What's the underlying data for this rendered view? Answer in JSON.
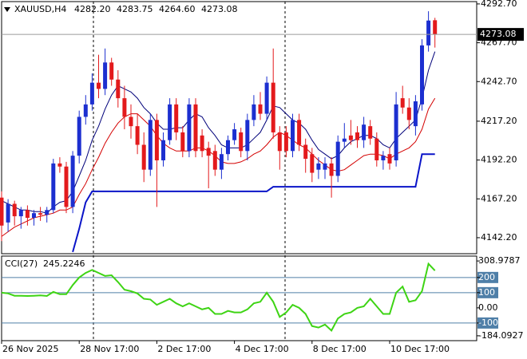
{
  "chart_data": [
    {
      "type": "candlestick",
      "header": {
        "symbol": "XAUUSD,H4",
        "ohlc": [
          {
            "value": 4282.2,
            "label": "4282.20"
          },
          {
            "value": 4283.75,
            "label": "4283.75"
          },
          {
            "value": 4264.6,
            "label": "4264.60"
          },
          {
            "value": 4273.08,
            "label": "4273.08"
          }
        ]
      },
      "categories": [
        "26 Nov 2025",
        null,
        null,
        null,
        null,
        null,
        null,
        null,
        null,
        null,
        null,
        null,
        "28 Nov 17:00",
        null,
        null,
        null,
        null,
        null,
        null,
        null,
        null,
        null,
        null,
        null,
        "2 Dec 17:00",
        null,
        null,
        null,
        null,
        null,
        null,
        null,
        null,
        null,
        null,
        null,
        "4 Dec 17:00",
        null,
        null,
        null,
        null,
        null,
        null,
        null,
        null,
        null,
        null,
        null,
        "8 Dec 17:00",
        null,
        null,
        null,
        null,
        null,
        null,
        null,
        null,
        null,
        null,
        null,
        "10 Dec 17:00",
        null,
        null,
        null,
        null,
        null,
        null,
        null
      ],
      "open": [
        4168,
        4152,
        4164,
        4156,
        4160,
        4155,
        4158,
        4157,
        4160,
        4190,
        4188,
        4162,
        4195,
        4220,
        4228,
        4242,
        4238,
        4255,
        4244,
        4232,
        4220,
        4214,
        4202,
        4186,
        4218,
        4192,
        4205,
        4228,
        4210,
        4198,
        4228,
        4208,
        4200,
        4198,
        4186,
        4196,
        4205,
        4210,
        4198,
        4218,
        4228,
        4222,
        4242,
        4210,
        4210,
        4198,
        4218,
        4202,
        4196,
        4186,
        4186,
        4190,
        4182,
        4204,
        4208,
        4210,
        4205,
        4214,
        4206,
        4192,
        4196,
        4192,
        4232,
        4226,
        4214,
        4228,
        4266,
        4282.2
      ],
      "high": [
        4172,
        4167,
        4166,
        4162,
        4163,
        4160,
        4162,
        4162,
        4193,
        4194,
        4191,
        4198,
        4224,
        4234,
        4248,
        4260,
        4264,
        4258,
        4250,
        4240,
        4228,
        4222,
        4210,
        4222,
        4222,
        4210,
        4232,
        4232,
        4214,
        4232,
        4232,
        4212,
        4204,
        4202,
        4200,
        4208,
        4216,
        4213,
        4222,
        4234,
        4236,
        4246,
        4264,
        4214,
        4214,
        4222,
        4222,
        4206,
        4200,
        4194,
        4194,
        4194,
        4208,
        4216,
        4218,
        4214,
        4220,
        4218,
        4210,
        4198,
        4200,
        4236,
        4240,
        4232,
        4234,
        4270,
        4288,
        4283.75
      ],
      "low": [
        4140,
        4146,
        4150,
        4148,
        4150,
        4150,
        4153,
        4152,
        4158,
        4184,
        4158,
        4158,
        4190,
        4215,
        4224,
        4232,
        4234,
        4240,
        4226,
        4212,
        4206,
        4196,
        4178,
        4182,
        4162,
        4188,
        4202,
        4205,
        4194,
        4194,
        4194,
        4194,
        4174,
        4182,
        4180,
        4192,
        4202,
        4194,
        4192,
        4214,
        4218,
        4218,
        4206,
        4186,
        4194,
        4194,
        4198,
        4184,
        4178,
        4180,
        4180,
        4168,
        4178,
        4200,
        4202,
        4200,
        4200,
        4202,
        4188,
        4186,
        4186,
        4188,
        4222,
        4212,
        4208,
        4224,
        4262,
        4264.6
      ],
      "close": [
        4150,
        4164,
        4156,
        4160,
        4155,
        4158,
        4157,
        4160,
        4190,
        4188,
        4162,
        4195,
        4220,
        4228,
        4242,
        4238,
        4255,
        4244,
        4232,
        4220,
        4214,
        4202,
        4186,
        4218,
        4192,
        4205,
        4228,
        4210,
        4198,
        4228,
        4198,
        4198,
        4195,
        4186,
        4196,
        4205,
        4212,
        4198,
        4218,
        4228,
        4222,
        4242,
        4210,
        4198,
        4198,
        4218,
        4202,
        4193,
        4184,
        4190,
        4190,
        4182,
        4204,
        4206,
        4205,
        4205,
        4215,
        4206,
        4192,
        4195,
        4190,
        4228,
        4226,
        4218,
        4230,
        4266,
        4282,
        4273.08
      ],
      "up_color": "#1c2fd0",
      "down_color": "#e31a1c",
      "series": [
        {
          "color": "#00007a",
          "values": [
            4166,
            4164,
            4162,
            4160,
            4160,
            4159,
            4159,
            4158,
            4162,
            4165,
            4166,
            4172,
            4182,
            4192,
            4205,
            4214,
            4225,
            4234,
            4240,
            4238,
            4236,
            4232,
            4226,
            4222,
            4216,
            4212,
            4212,
            4213,
            4213,
            4218,
            4222,
            4220,
            4213,
            4208,
            4202,
            4200,
            4200,
            4200,
            4202,
            4206,
            4210,
            4218,
            4227,
            4226,
            4222,
            4218,
            4216,
            4212,
            4205,
            4199,
            4196,
            4193,
            4195,
            4200,
            4204,
            4206,
            4208,
            4208,
            4206,
            4202,
            4200,
            4206,
            4210,
            4214,
            4218,
            4232,
            4250,
            4262
          ]
        },
        {
          "color": "#d40000",
          "values": [
            4143,
            4146,
            4149,
            4151,
            4153,
            4155,
            4156,
            4157,
            4158,
            4160,
            4160,
            4162,
            4170,
            4177,
            4186,
            4194,
            4203,
            4210,
            4216,
            4220,
            4222,
            4222,
            4218,
            4214,
            4208,
            4203,
            4200,
            4198,
            4198,
            4198,
            4200,
            4200,
            4198,
            4195,
            4191,
            4190,
            4190,
            4191,
            4193,
            4196,
            4198,
            4202,
            4207,
            4210,
            4208,
            4205,
            4202,
            4200,
            4196,
            4192,
            4189,
            4186,
            4185,
            4186,
            4189,
            4192,
            4195,
            4196,
            4196,
            4195,
            4193,
            4196,
            4198,
            4200,
            4204,
            4212,
            4225,
            4232
          ]
        },
        {
          "color": "#0a14c8",
          "values": [
            null,
            null,
            null,
            null,
            null,
            null,
            null,
            null,
            null,
            null,
            null,
            4133,
            4148,
            4165,
            4172,
            4172,
            4172,
            4172,
            4172,
            4172,
            4172,
            4172,
            4172,
            4172,
            4172,
            4172,
            4172,
            4172,
            4172,
            4172,
            4172,
            4172,
            4172,
            4172,
            4172,
            4172,
            4172,
            4172,
            4172,
            4172,
            4172,
            4172,
            4175,
            4175,
            4175,
            4175,
            4175,
            4175,
            4175,
            4175,
            4175,
            4175,
            4175,
            4175,
            4175,
            4175,
            4175,
            4175,
            4175,
            4175,
            4175,
            4175,
            4175,
            4175,
            4175,
            4196,
            4196,
            4196
          ]
        }
      ],
      "ylim": [
        4131.9,
        4294.2
      ],
      "yticks": [
        {
          "value": 4292.7,
          "label": "4292.70"
        },
        {
          "value": 4267.7,
          "label": "4267.70"
        },
        {
          "value": 4242.7,
          "label": "4242.70"
        },
        {
          "value": 4217.2,
          "label": "4217.20"
        },
        {
          "value": 4192.2,
          "label": "4192.20"
        },
        {
          "value": 4167.2,
          "label": "4167.20"
        },
        {
          "value": 4142.2,
          "label": "4142.20"
        }
      ]
    },
    {
      "type": "line",
      "title": "CCI(27)",
      "color": "#3ed414",
      "values": [
        100,
        95,
        80,
        80,
        78,
        80,
        82,
        78,
        105,
        90,
        90,
        150,
        200,
        230,
        250,
        230,
        210,
        215,
        170,
        120,
        110,
        95,
        60,
        55,
        20,
        40,
        60,
        30,
        10,
        30,
        10,
        -10,
        0,
        -40,
        -40,
        -20,
        -30,
        -30,
        -10,
        30,
        40,
        100,
        40,
        -60,
        -30,
        20,
        0,
        -40,
        -120,
        -130,
        -110,
        -150,
        -70,
        -40,
        -30,
        0,
        10,
        60,
        10,
        -40,
        -40,
        100,
        140,
        40,
        50,
        110,
        290,
        245.2246
      ],
      "ylim": [
        -216.2,
        341.1
      ],
      "yticks": [
        308.9787,
        200,
        100,
        {
          "value": 0,
          "label": "0.00"
        },
        -100,
        -184.0927
      ],
      "levels": [
        200,
        100,
        -100
      ]
    }
  ]
}
